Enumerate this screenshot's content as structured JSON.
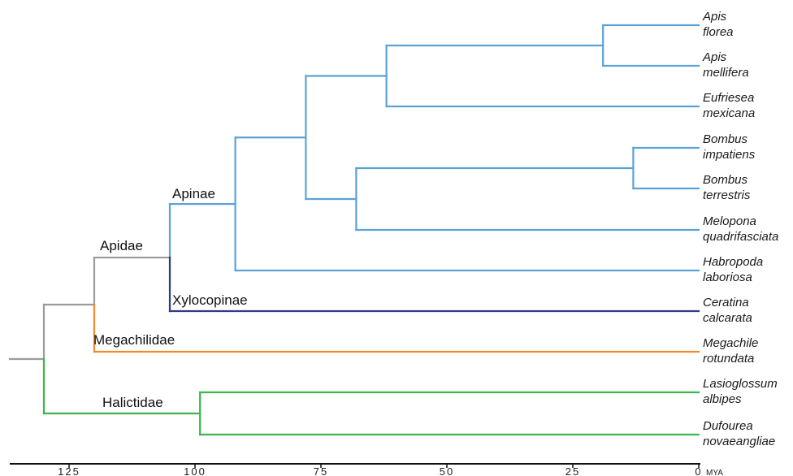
{
  "axis": {
    "ticks": [
      {
        "value": 125,
        "label": "125"
      },
      {
        "value": 100,
        "label": "100"
      },
      {
        "value": 75,
        "label": "75"
      },
      {
        "value": 50,
        "label": "50"
      },
      {
        "value": 25,
        "label": "25"
      },
      {
        "value": 0,
        "label": "0"
      }
    ],
    "unit": "MYA"
  },
  "colors": {
    "apinae": "#5aa3d6",
    "xylocopinae": "#2e3a8c",
    "megachilidae": "#f08a2c",
    "halictidae": "#3cb54a",
    "stem": "#9b9b9b"
  },
  "clades": {
    "apinae": "Apinae",
    "apidae": "Apidae",
    "xylocopinae": "Xylocopinae",
    "megachilidae": "Megachilidae",
    "halictidae": "Halictidae"
  },
  "taxa": [
    {
      "genus": "Apis",
      "species": "florea"
    },
    {
      "genus": "Apis",
      "species": "mellifera"
    },
    {
      "genus": "Eufriesea",
      "species": "mexicana"
    },
    {
      "genus": "Bombus",
      "species": "impatiens"
    },
    {
      "genus": "Bombus",
      "species": "terrestris"
    },
    {
      "genus": "Melopona",
      "species": "quadrifasciata"
    },
    {
      "genus": "Habropoda",
      "species": "laboriosa"
    },
    {
      "genus": "Ceratina",
      "species": "calcarata"
    },
    {
      "genus": "Megachile",
      "species": "rotundata"
    },
    {
      "genus": "Lasioglossum",
      "species": "albipes"
    },
    {
      "genus": "Dufourea",
      "species": "novaeangliae"
    }
  ],
  "divergences_mya": {
    "root": 130,
    "apidae_megachilidae": 120,
    "apinae_xylocopinae": 105,
    "habropoda_split": 92,
    "corbiculate_eufriesea": 78,
    "apis_eufriesea": 62,
    "apis_species": 19,
    "bombus_melipona": 68,
    "bombus_species": 13,
    "halictidae_crown": 99
  }
}
